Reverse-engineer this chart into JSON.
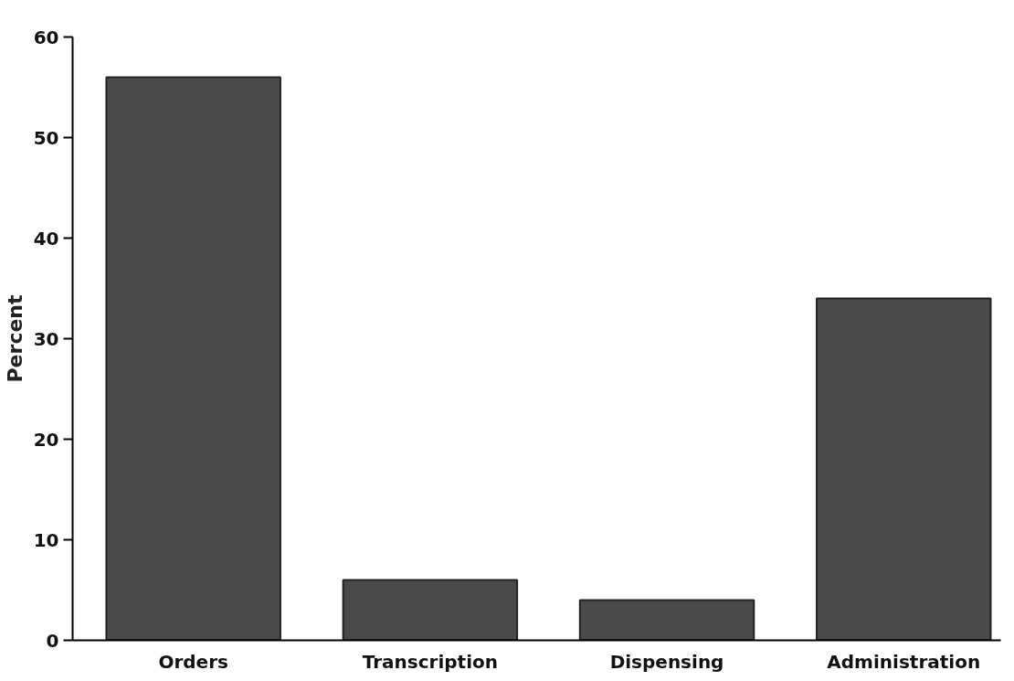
{
  "chart_data": {
    "type": "bar",
    "ylabel": "Percent",
    "categories": [
      "Orders",
      "Transcription",
      "Dispensing",
      "Administration"
    ],
    "values": [
      56,
      6,
      4,
      34
    ],
    "color": "#4a4a4a",
    "ylim": [
      0,
      60
    ],
    "yticks": [
      0,
      10,
      20,
      30,
      40,
      50,
      60
    ],
    "grid": false
  }
}
